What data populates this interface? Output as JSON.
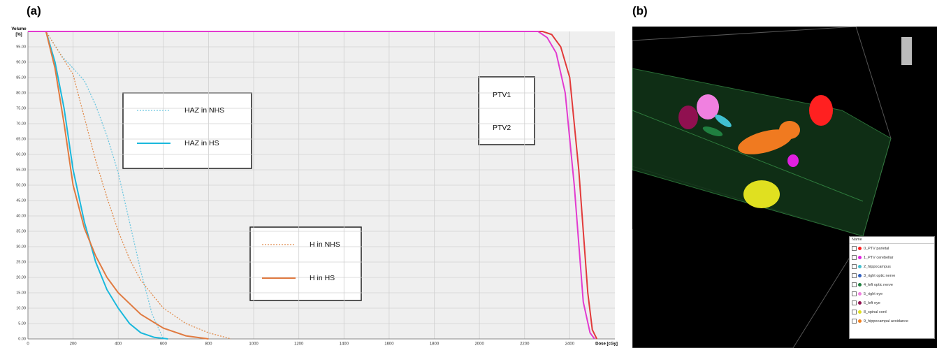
{
  "chart_data": {
    "type": "line",
    "panel_label": "(a)",
    "y_label": "Volume [%]",
    "x_label": "Dose [cGy]",
    "xlim": [
      0,
      2600
    ],
    "ylim": [
      0,
      100
    ],
    "xticks": [
      0,
      200,
      400,
      600,
      800,
      1000,
      1200,
      1400,
      1600,
      1800,
      2000,
      2200,
      2400
    ],
    "yticks": [
      {
        "value": 0,
        "label": "0.00"
      },
      {
        "value": 5,
        "label": "5.00"
      },
      {
        "value": 10,
        "label": "10.00"
      },
      {
        "value": 15,
        "label": "15.00"
      },
      {
        "value": 20,
        "label": "20.00"
      },
      {
        "value": 25,
        "label": "25.00"
      },
      {
        "value": 30,
        "label": "30.00"
      },
      {
        "value": 35,
        "label": "35.00"
      },
      {
        "value": 40,
        "label": "40.00"
      },
      {
        "value": 45,
        "label": "45.00"
      },
      {
        "value": 50,
        "label": "50.00"
      },
      {
        "value": 55,
        "label": "55.00"
      },
      {
        "value": 60,
        "label": "60.00"
      },
      {
        "value": 65,
        "label": "65.00"
      },
      {
        "value": 70,
        "label": "70.00"
      },
      {
        "value": 75,
        "label": "75.00"
      },
      {
        "value": 80,
        "label": "80.00"
      },
      {
        "value": 85,
        "label": "85.00"
      },
      {
        "value": 90,
        "label": "90.00"
      },
      {
        "value": 95,
        "label": "95.00"
      }
    ],
    "grid": true,
    "series": [
      {
        "name": "HAZ in NHS",
        "color": "#6cc6e0",
        "style": "dotted",
        "x": [
          0,
          80,
          150,
          200,
          250,
          300,
          350,
          400,
          450,
          500,
          550,
          600
        ],
        "values": [
          100,
          100,
          92,
          88,
          84,
          76,
          66,
          54,
          38,
          22,
          8,
          0
        ]
      },
      {
        "name": "HAZ in HS",
        "color": "#1ab8dc",
        "style": "solid",
        "x": [
          0,
          80,
          120,
          160,
          200,
          250,
          300,
          350,
          400,
          450,
          500,
          560,
          620
        ],
        "values": [
          100,
          100,
          90,
          75,
          55,
          38,
          25,
          16,
          10,
          5,
          2,
          0.5,
          0
        ]
      },
      {
        "name": "H in NHS",
        "color": "#e08a4a",
        "style": "dotted",
        "x": [
          0,
          80,
          200,
          250,
          300,
          350,
          400,
          450,
          500,
          600,
          700,
          800,
          900
        ],
        "values": [
          100,
          100,
          86,
          72,
          58,
          46,
          35,
          26,
          19,
          10,
          5,
          2,
          0
        ]
      },
      {
        "name": "H in HS",
        "color": "#e07a40",
        "style": "solid",
        "x": [
          0,
          80,
          120,
          160,
          200,
          250,
          300,
          350,
          400,
          500,
          600,
          700,
          800
        ],
        "values": [
          100,
          100,
          88,
          70,
          50,
          36,
          27,
          20,
          15,
          8,
          3.5,
          1,
          0
        ]
      },
      {
        "name": "PTV1",
        "color": "#e23a3a",
        "style": "solid",
        "x": [
          0,
          2280,
          2320,
          2360,
          2400,
          2440,
          2480,
          2500,
          2520
        ],
        "values": [
          100,
          100,
          99,
          95,
          85,
          55,
          15,
          3,
          0
        ]
      },
      {
        "name": "PTV2",
        "color": "#e23ad0",
        "style": "solid",
        "x": [
          0,
          2260,
          2300,
          2340,
          2380,
          2420,
          2460,
          2490,
          2510
        ],
        "values": [
          100,
          100,
          98,
          93,
          80,
          50,
          12,
          2,
          0
        ]
      }
    ]
  },
  "render": {
    "panel_label": "(b)",
    "legend_title": "Name",
    "structures": [
      {
        "name": "0_PTV parietal",
        "color": "#ff2020"
      },
      {
        "name": "1_PTV cerebellar",
        "color": "#e020e0"
      },
      {
        "name": "2_hippocampus",
        "color": "#40c0d0"
      },
      {
        "name": "3_right optic nerve",
        "color": "#3060c0"
      },
      {
        "name": "4_left optic nerve",
        "color": "#208040"
      },
      {
        "name": "5_right eye",
        "color": "#f080e0"
      },
      {
        "name": "6_left eye",
        "color": "#901050"
      },
      {
        "name": "8_spinal cord",
        "color": "#e0e020"
      },
      {
        "name": "9_hippocampal avoidance",
        "color": "#f08020"
      }
    ]
  }
}
